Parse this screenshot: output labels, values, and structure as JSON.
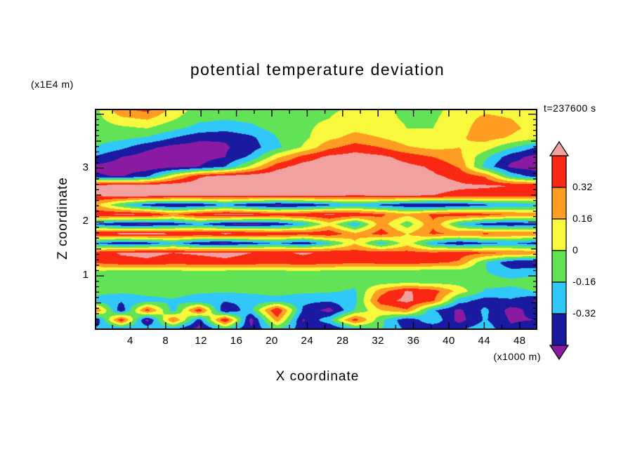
{
  "title": "potential temperature deviation",
  "timestamp": "t=237600 s",
  "x_axis": {
    "label": "X coordinate",
    "unit": "(x1000 m)",
    "range": [
      0,
      50
    ],
    "tick_values": [
      4,
      8,
      12,
      16,
      20,
      24,
      28,
      32,
      36,
      40,
      44,
      48
    ],
    "tick_labels": [
      "4",
      "8",
      "12",
      "16",
      "20",
      "24",
      "28",
      "32",
      "36",
      "40",
      "44",
      "48"
    ],
    "minor_tick_step": 2
  },
  "y_axis": {
    "label": "Z coordinate",
    "unit": "(x1E4 m)",
    "range": [
      0,
      4.1
    ],
    "tick_values": [
      1,
      2,
      3
    ],
    "tick_labels": [
      "1",
      "2",
      "3"
    ],
    "minor_tick_step": 0.1
  },
  "colorbar": {
    "boundary_labels": [
      "0.32",
      "0.16",
      "0",
      "-0.16",
      "-0.32"
    ],
    "boundary_values": [
      0.32,
      0.16,
      0,
      -0.16,
      -0.32
    ],
    "band_colors_top_to_bottom": [
      "#fa2812",
      "#ff9c22",
      "#f8f83c",
      "#62e356",
      "#2fc8f8",
      "#1a1aa0"
    ],
    "arrow_top_color": "#f2a0a0",
    "arrow_bottom_color": "#8a1aa2",
    "outline_color": "#000000"
  },
  "chart_data": {
    "type": "heatmap",
    "title": "potential temperature deviation",
    "xlabel": "X coordinate (x1000 m)",
    "ylabel": "Z coordinate (x1E4 m)",
    "time_label": "t=237600 s",
    "x_range": [
      0,
      50
    ],
    "z_range": [
      0,
      4.1
    ],
    "legend_position": "right-colorbar",
    "levels": [
      -0.48,
      -0.32,
      -0.16,
      0,
      0.16,
      0.32,
      0.48
    ],
    "palette_low_to_high": [
      "#8a1aa2",
      "#1a1aa0",
      "#2fc8f8",
      "#62e356",
      "#f8f83c",
      "#ff9c22",
      "#fa2812",
      "#f2a0a0"
    ],
    "rows_order": "top-to-bottom (z = 4.1 down to 0)",
    "values": [
      [
        -0.05,
        0.3,
        0.38,
        0.1,
        -0.06,
        -0.08,
        -0.1,
        -0.06,
        -0.04,
        -0.02,
        0.02,
        0.04,
        -0.04,
        -0.04,
        0.06,
        0.12,
        0.1,
        0.06
      ],
      [
        -0.06,
        0.12,
        0.18,
        0.02,
        -0.12,
        -0.15,
        -0.12,
        -0.08,
        -0.04,
        0.0,
        0.06,
        0.04,
        -0.02,
        -0.02,
        0.08,
        0.2,
        0.16,
        0.08
      ],
      [
        -0.08,
        -0.04,
        0.0,
        -0.12,
        -0.22,
        -0.26,
        -0.2,
        -0.1,
        -0.04,
        0.06,
        0.12,
        0.08,
        0.0,
        0.0,
        0.1,
        0.24,
        0.2,
        0.1
      ],
      [
        -0.1,
        -0.12,
        -0.18,
        -0.32,
        -0.44,
        -0.46,
        -0.36,
        -0.16,
        -0.04,
        0.12,
        0.22,
        0.16,
        0.06,
        0.04,
        0.14,
        0.22,
        0.14,
        0.04
      ],
      [
        -0.16,
        -0.28,
        -0.44,
        -0.54,
        -0.56,
        -0.5,
        -0.4,
        -0.2,
        0.02,
        0.28,
        0.4,
        0.32,
        0.18,
        0.12,
        0.16,
        0.08,
        -0.14,
        -0.34
      ],
      [
        -0.34,
        -0.48,
        -0.56,
        -0.58,
        -0.55,
        -0.48,
        -0.28,
        0.12,
        0.38,
        0.52,
        0.56,
        0.52,
        0.42,
        0.32,
        0.2,
        -0.12,
        -0.42,
        -0.54
      ],
      [
        -0.52,
        -0.56,
        -0.58,
        -0.55,
        -0.48,
        -0.32,
        0.05,
        0.42,
        0.56,
        0.6,
        0.6,
        0.56,
        0.52,
        0.46,
        0.3,
        -0.22,
        -0.52,
        -0.56
      ],
      [
        -0.45,
        -0.5,
        -0.35,
        0.1,
        0.45,
        0.55,
        0.58,
        0.6,
        0.6,
        0.58,
        0.56,
        0.55,
        0.52,
        0.5,
        0.45,
        0.3,
        -0.2,
        -0.4
      ],
      [
        0.55,
        0.6,
        0.6,
        0.6,
        0.6,
        0.6,
        0.58,
        0.6,
        0.6,
        0.58,
        0.56,
        0.55,
        0.54,
        0.52,
        0.5,
        0.5,
        0.48,
        0.45
      ],
      [
        0.5,
        0.55,
        0.56,
        0.55,
        0.52,
        0.5,
        0.52,
        0.54,
        0.52,
        0.5,
        0.48,
        0.5,
        0.5,
        0.48,
        0.45,
        0.42,
        0.4,
        0.38
      ],
      [
        0.2,
        -0.15,
        -0.4,
        -0.5,
        -0.45,
        -0.3,
        -0.45,
        -0.52,
        -0.48,
        -0.35,
        -0.25,
        -0.35,
        -0.45,
        -0.5,
        -0.45,
        -0.35,
        -0.3,
        -0.25
      ],
      [
        0.45,
        0.5,
        0.48,
        0.3,
        0.45,
        0.52,
        0.5,
        0.42,
        0.45,
        0.5,
        0.45,
        0.35,
        0.2,
        0.35,
        0.42,
        0.38,
        0.3,
        0.28
      ],
      [
        -0.35,
        -0.48,
        -0.5,
        -0.42,
        -0.3,
        -0.48,
        -0.52,
        -0.45,
        -0.25,
        0.1,
        -0.3,
        0.25,
        -0.1,
        0.3,
        -0.2,
        -0.4,
        -0.45,
        -0.38
      ],
      [
        0.48,
        0.52,
        0.54,
        0.5,
        0.48,
        0.52,
        0.5,
        0.45,
        0.4,
        0.45,
        0.2,
        0.4,
        0.15,
        0.35,
        0.3,
        0.35,
        0.32,
        0.3
      ],
      [
        -0.3,
        -0.45,
        -0.4,
        -0.25,
        -0.45,
        -0.5,
        -0.4,
        -0.3,
        -0.45,
        -0.2,
        0.15,
        -0.25,
        0.1,
        -0.3,
        -0.45,
        -0.35,
        -0.3,
        -0.4
      ],
      [
        0.4,
        0.5,
        0.52,
        0.48,
        0.5,
        0.52,
        0.48,
        0.45,
        0.5,
        0.45,
        0.4,
        0.42,
        0.38,
        0.35,
        0.4,
        0.35,
        0.3,
        0.28
      ],
      [
        0.35,
        0.42,
        0.45,
        0.4,
        0.42,
        0.45,
        0.42,
        0.4,
        0.42,
        0.4,
        0.35,
        0.38,
        0.4,
        0.35,
        0.3,
        -0.15,
        -0.45,
        -0.5
      ],
      [
        -0.06,
        -0.08,
        -0.1,
        -0.08,
        -0.06,
        -0.08,
        -0.1,
        -0.08,
        -0.06,
        -0.08,
        -0.1,
        -0.08,
        -0.1,
        -0.12,
        -0.1,
        -0.15,
        -0.25,
        -0.2
      ],
      [
        -0.08,
        -0.1,
        -0.08,
        -0.06,
        -0.08,
        -0.1,
        -0.08,
        -0.06,
        -0.08,
        -0.1,
        -0.12,
        -0.1,
        -0.08,
        -0.1,
        -0.08,
        -0.1,
        -0.12,
        -0.1
      ],
      [
        -0.1,
        -0.12,
        -0.1,
        -0.08,
        -0.12,
        -0.14,
        -0.12,
        -0.1,
        -0.12,
        -0.14,
        -0.18,
        0.25,
        0.5,
        0.4,
        0.1,
        -0.18,
        -0.2,
        -0.15
      ],
      [
        -0.22,
        -0.3,
        -0.22,
        -0.18,
        -0.28,
        -0.3,
        -0.26,
        -0.22,
        -0.28,
        -0.3,
        -0.2,
        0.42,
        0.52,
        0.35,
        -0.25,
        -0.4,
        -0.35,
        -0.5
      ],
      [
        0.35,
        -0.45,
        0.4,
        -0.25,
        0.45,
        -0.5,
        -0.2,
        0.5,
        -0.35,
        -0.55,
        -0.15,
        0.15,
        0.3,
        -0.3,
        -0.52,
        -0.28,
        -0.55,
        -0.4
      ],
      [
        -0.5,
        0.45,
        -0.55,
        0.35,
        -0.4,
        0.5,
        -0.55,
        0.25,
        -0.5,
        -0.2,
        0.4,
        -0.12,
        -0.45,
        -0.18,
        -0.55,
        -0.3,
        -0.5,
        -0.48
      ],
      [
        -0.25,
        -0.4,
        -0.18,
        -0.35,
        -0.55,
        -0.22,
        -0.45,
        -0.18,
        -0.4,
        -0.52,
        -0.28,
        -0.15,
        -0.35,
        -0.5,
        -0.32,
        -0.22,
        -0.45,
        -0.35
      ]
    ]
  }
}
